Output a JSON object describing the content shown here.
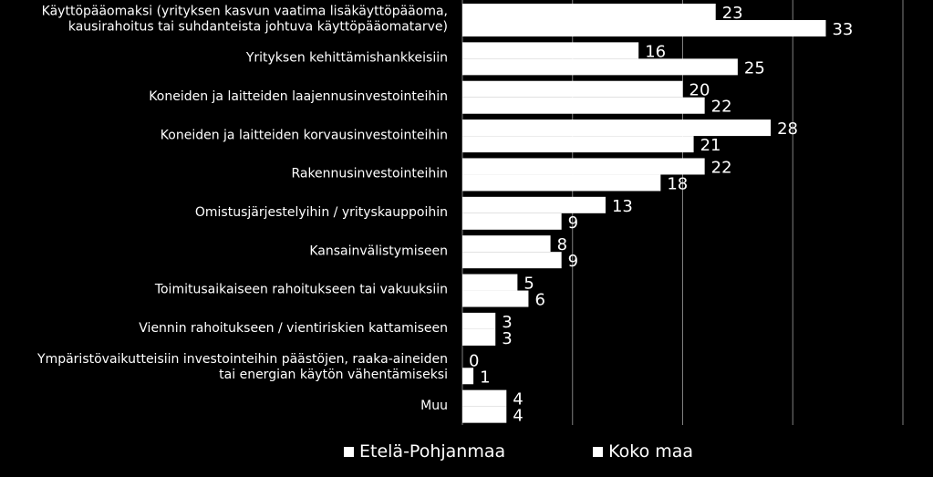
{
  "chart_data": {
    "type": "bar",
    "orientation": "horizontal",
    "categories": [
      [
        "Käyttöpääomaksi (yrityksen kasvun vaatima lisäkäyttöpääoma,",
        "kausirahoitus tai suhdanteista johtuva käyttöpääomatarve)"
      ],
      [
        "Yrityksen kehittämishankkeisiin"
      ],
      [
        "Koneiden ja laitteiden laajennusinvestointeihin"
      ],
      [
        "Koneiden ja laitteiden korvausinvestointeihin"
      ],
      [
        "Rakennusinvestointeihin"
      ],
      [
        "Omistusjärjestelyihin / yrityskauppoihin"
      ],
      [
        "Kansainvälistymiseen"
      ],
      [
        "Toimitusaikaiseen rahoitukseen tai vakuuksiin"
      ],
      [
        "Viennin rahoitukseen / vientiriskien kattamiseen"
      ],
      [
        "Ympäristövaikutteisiin investointeihin päästöjen, raaka-aineiden",
        "tai energian käytön vähentämiseksi"
      ],
      [
        "Muu"
      ]
    ],
    "series": [
      {
        "name": "Etelä-Pohjanmaa",
        "values": [
          23,
          16,
          20,
          28,
          22,
          13,
          8,
          5,
          3,
          0,
          4
        ]
      },
      {
        "name": "Koko maa",
        "values": [
          33,
          25,
          22,
          21,
          18,
          9,
          9,
          6,
          3,
          1,
          4
        ]
      }
    ],
    "xlim": [
      0,
      40
    ],
    "grid": true,
    "legend_position": "bottom",
    "colors": {
      "background": "#000000",
      "bars": "#ffffff",
      "text": "#ffffff",
      "grid": "#808080"
    }
  }
}
